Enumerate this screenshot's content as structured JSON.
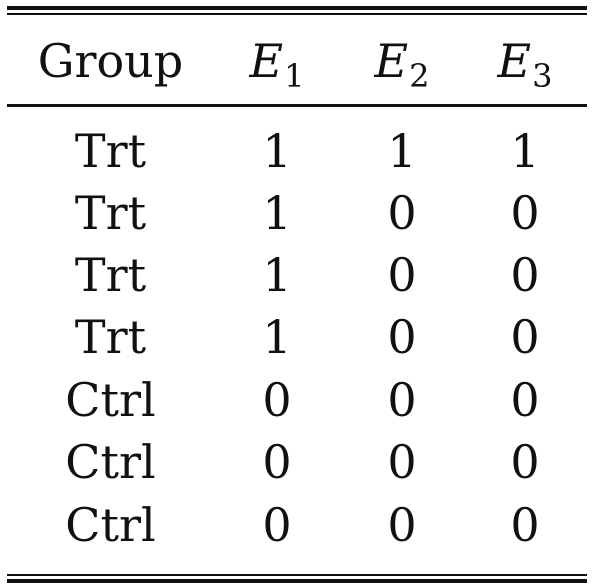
{
  "table": {
    "header": {
      "group": "Group",
      "e1_var": "E",
      "e1_sub": "1",
      "e2_var": "E",
      "e2_sub": "2",
      "e3_var": "E",
      "e3_sub": "3"
    },
    "rows": [
      {
        "group": "Trt",
        "e1": "1",
        "e2": "1",
        "e3": "1"
      },
      {
        "group": "Trt",
        "e1": "1",
        "e2": "0",
        "e3": "0"
      },
      {
        "group": "Trt",
        "e1": "1",
        "e2": "0",
        "e3": "0"
      },
      {
        "group": "Trt",
        "e1": "1",
        "e2": "0",
        "e3": "0"
      },
      {
        "group": "Ctrl",
        "e1": "0",
        "e2": "0",
        "e3": "0"
      },
      {
        "group": "Ctrl",
        "e1": "0",
        "e2": "0",
        "e3": "0"
      },
      {
        "group": "Ctrl",
        "e1": "0",
        "e2": "0",
        "e3": "0"
      }
    ]
  }
}
